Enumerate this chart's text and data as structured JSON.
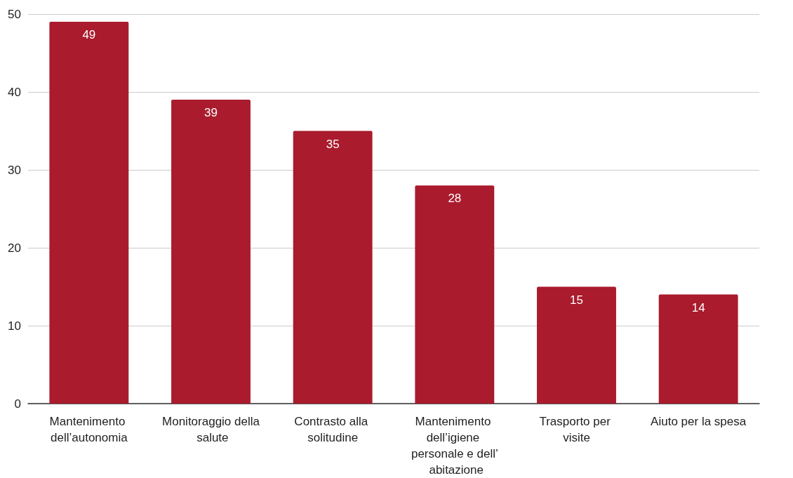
{
  "chart_data": {
    "type": "bar",
    "categories": [
      "Mantenimento dell’autonomia",
      "Monitoraggio della salute",
      "Contrasto alla solitudine",
      "Mantenimento dell’igiene personale e dell’ abitazione",
      "Trasporto per visite",
      "Aiuto per la spesa"
    ],
    "values": [
      49,
      39,
      35,
      28,
      15,
      14
    ],
    "color": "#a91b2d",
    "ylim": [
      0,
      50
    ],
    "yticks": [
      0,
      10,
      20,
      30,
      40,
      50
    ],
    "grid": "y",
    "data_labels": true
  }
}
